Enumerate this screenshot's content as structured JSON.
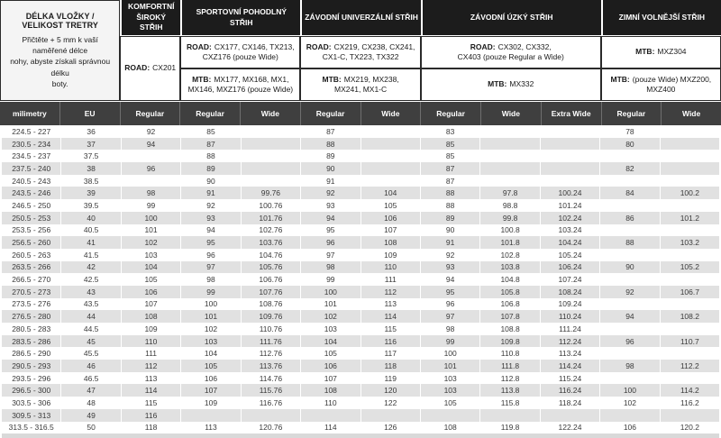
{
  "info_block": {
    "title": "DÉLKA VLOŽKY / VELIKOST TRETRY",
    "description": "Přičtěte + 5 mm k vaší naměřené délce\nnohy, abyste získali správnou délku\nboty."
  },
  "groups": {
    "komfortni": {
      "title": "KOMFORTNÍ\nŠIROKÝ\nSTŘIH",
      "sub": {
        "label": "ROAD:",
        "models": "CX201"
      }
    },
    "sportovni": {
      "title": "SPORTOVNÍ POHODLNÝ STŘIH",
      "road": {
        "label": "ROAD:",
        "models": "CX177, CX146, TX213,\nCXZ176 (pouze Wide)"
      },
      "mtb": {
        "label": "MTB:",
        "models": "MX177, MX168, MX1,\nMX146, MXZ176 (pouze Wide)"
      }
    },
    "zavodni_univerzalni": {
      "title": "ZÁVODNÍ UNIVERZÁLNÍ STŘIH",
      "road": {
        "label": "ROAD:",
        "models": "CX219, CX238, CX241,\nCX1-C, TX223, TX322"
      },
      "mtb": {
        "label": "MTB:",
        "models": "MX219, MX238,\nMX241, MX1-C"
      }
    },
    "zavodni_uzky": {
      "title": "ZÁVODNÍ ÚZKÝ STŘIH",
      "road": {
        "label": "ROAD:",
        "models": "CX302, CX332,\nCX403 (pouze Regular a Wide)"
      },
      "mtb": {
        "label": "MTB:",
        "models": "MX332"
      }
    },
    "zimni": {
      "title": "ZIMNÍ VOLNĚJŠÍ STŘIH",
      "row1": {
        "label": "MTB:",
        "models": "MXZ304"
      },
      "row2": {
        "label": "MTB:",
        "models": "(pouze Wide) MXZ200, MXZ400"
      }
    }
  },
  "column_headers": [
    "milimetry",
    "EU",
    "Regular",
    "Regular",
    "Wide",
    "Regular",
    "Wide",
    "Regular",
    "Wide",
    "Extra Wide",
    "Regular",
    "Wide"
  ],
  "rows": [
    [
      "224.5 - 227",
      "36",
      "92",
      "85",
      "",
      "87",
      "",
      "83",
      "",
      "",
      "78",
      ""
    ],
    [
      "230.5 - 234",
      "37",
      "94",
      "87",
      "",
      "88",
      "",
      "85",
      "",
      "",
      "80",
      ""
    ],
    [
      "234.5 - 237",
      "37.5",
      "",
      "88",
      "",
      "89",
      "",
      "85",
      "",
      "",
      "",
      ""
    ],
    [
      "237.5 - 240",
      "38",
      "96",
      "89",
      "",
      "90",
      "",
      "87",
      "",
      "",
      "82",
      ""
    ],
    [
      "240.5 - 243",
      "38.5",
      "",
      "90",
      "",
      "91",
      "",
      "87",
      "",
      "",
      "",
      ""
    ],
    [
      "243.5 - 246",
      "39",
      "98",
      "91",
      "99.76",
      "92",
      "104",
      "88",
      "97.8",
      "100.24",
      "84",
      "100.2"
    ],
    [
      "246.5 - 250",
      "39.5",
      "99",
      "92",
      "100.76",
      "93",
      "105",
      "88",
      "98.8",
      "101.24",
      "",
      ""
    ],
    [
      "250.5 - 253",
      "40",
      "100",
      "93",
      "101.76",
      "94",
      "106",
      "89",
      "99.8",
      "102.24",
      "86",
      "101.2"
    ],
    [
      "253.5 - 256",
      "40.5",
      "101",
      "94",
      "102.76",
      "95",
      "107",
      "90",
      "100.8",
      "103.24",
      "",
      ""
    ],
    [
      "256.5 - 260",
      "41",
      "102",
      "95",
      "103.76",
      "96",
      "108",
      "91",
      "101.8",
      "104.24",
      "88",
      "103.2"
    ],
    [
      "260.5 - 263",
      "41.5",
      "103",
      "96",
      "104.76",
      "97",
      "109",
      "92",
      "102.8",
      "105.24",
      "",
      ""
    ],
    [
      "263.5 - 266",
      "42",
      "104",
      "97",
      "105.76",
      "98",
      "110",
      "93",
      "103.8",
      "106.24",
      "90",
      "105.2"
    ],
    [
      "266.5 - 270",
      "42.5",
      "105",
      "98",
      "106.76",
      "99",
      "111",
      "94",
      "104.8",
      "107.24",
      "",
      ""
    ],
    [
      "270.5 - 273",
      "43",
      "106",
      "99",
      "107.76",
      "100",
      "112",
      "95",
      "105.8",
      "108.24",
      "92",
      "106.7"
    ],
    [
      "273.5 - 276",
      "43.5",
      "107",
      "100",
      "108.76",
      "101",
      "113",
      "96",
      "106.8",
      "109.24",
      "",
      ""
    ],
    [
      "276.5 - 280",
      "44",
      "108",
      "101",
      "109.76",
      "102",
      "114",
      "97",
      "107.8",
      "110.24",
      "94",
      "108.2"
    ],
    [
      "280.5 - 283",
      "44.5",
      "109",
      "102",
      "110.76",
      "103",
      "115",
      "98",
      "108.8",
      "111.24",
      "",
      ""
    ],
    [
      "283.5 - 286",
      "45",
      "110",
      "103",
      "111.76",
      "104",
      "116",
      "99",
      "109.8",
      "112.24",
      "96",
      "110.7"
    ],
    [
      "286.5 - 290",
      "45.5",
      "111",
      "104",
      "112.76",
      "105",
      "117",
      "100",
      "110.8",
      "113.24",
      "",
      ""
    ],
    [
      "290.5 - 293",
      "46",
      "112",
      "105",
      "113.76",
      "106",
      "118",
      "101",
      "111.8",
      "114.24",
      "98",
      "112.2"
    ],
    [
      "293.5 - 296",
      "46.5",
      "113",
      "106",
      "114.76",
      "107",
      "119",
      "103",
      "112.8",
      "115.24",
      "",
      ""
    ],
    [
      "296.5 - 300",
      "47",
      "114",
      "107",
      "115.76",
      "108",
      "120",
      "103",
      "113.8",
      "116.24",
      "100",
      "114.2"
    ],
    [
      "303.5 - 306",
      "48",
      "115",
      "109",
      "116.76",
      "110",
      "122",
      "105",
      "115.8",
      "118.24",
      "102",
      "116.2"
    ],
    [
      "309.5 - 313",
      "49",
      "116",
      "",
      "",
      "",
      "",
      "",
      "",
      "",
      "",
      ""
    ],
    [
      "313.5 - 316.5",
      "50",
      "118",
      "113",
      "120.76",
      "114",
      "126",
      "108",
      "119.8",
      "122.24",
      "106",
      "120.2"
    ]
  ],
  "colors": {
    "group_header_bg": "#1c1c1c",
    "column_header_bg": "#3f3f3f",
    "stripe_bg": "#e1e1e1",
    "info_bg": "#f4f4f4",
    "border_dark": "#2a2a2a"
  }
}
